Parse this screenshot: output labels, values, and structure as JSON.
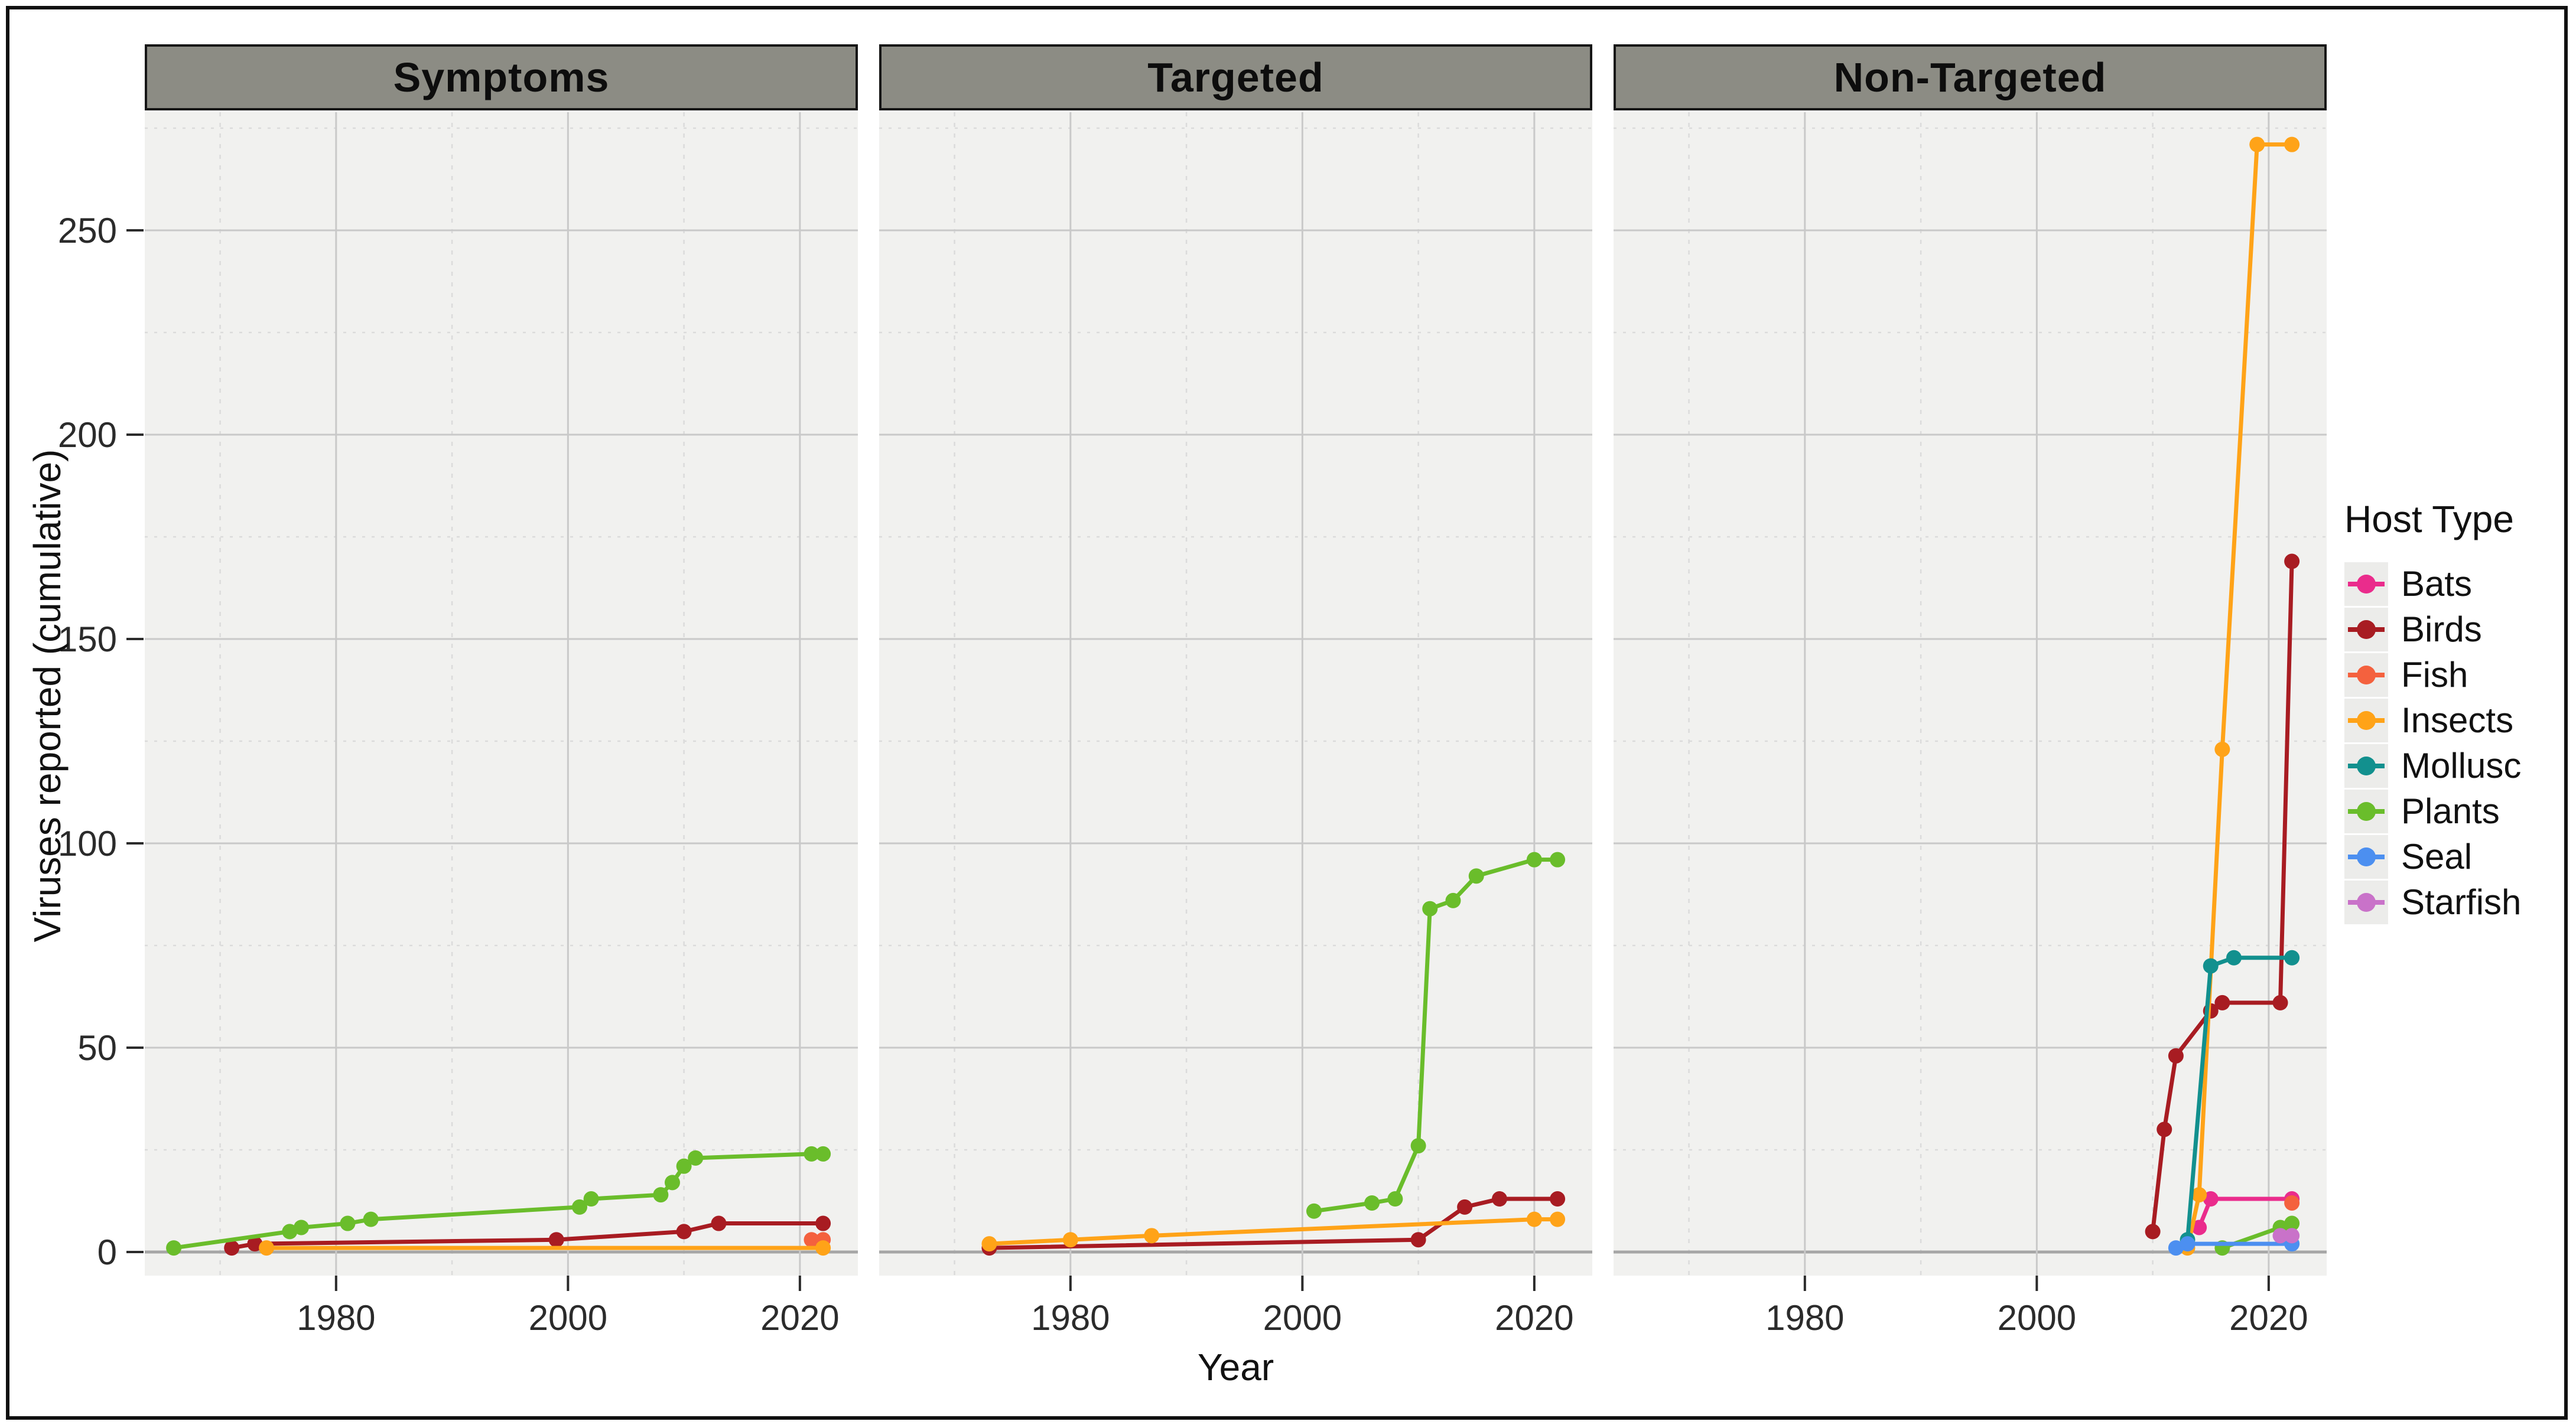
{
  "figure": {
    "colors": {
      "Bats": "#EA2C8C",
      "Birds": "#A81C22",
      "Fish": "#F4613E",
      "Insects": "#FFA318",
      "Mollusc": "#12908E",
      "Plants": "#6ABD2B",
      "Seal": "#4C8FF0",
      "Starfish": "#C972C9"
    },
    "panel_bg": "#F1F1EF",
    "grid_major": "#C9C9C9",
    "grid_minor": "#DBDBDB",
    "zero_line": "#A6A6A6",
    "strip_bg": "#8C8C84",
    "tick_color": "#2B2B2B",
    "text_color": "#111111"
  },
  "y_axis": {
    "title": "Viruses reported (cumulative)",
    "ticks": [
      0,
      50,
      100,
      150,
      200,
      250
    ],
    "minor_ticks": [
      25,
      75,
      125,
      175,
      225,
      275
    ]
  },
  "x_axis": {
    "title": "Year",
    "ticks": [
      1980,
      2000,
      2020
    ],
    "minor_ticks": [
      1970,
      1990,
      2010
    ],
    "range": [
      1963.5,
      2025
    ]
  },
  "legend": {
    "title": "Host Type",
    "items": [
      {
        "label": "Bats",
        "color": "#EA2C8C"
      },
      {
        "label": "Birds",
        "color": "#A81C22"
      },
      {
        "label": "Fish",
        "color": "#F4613E"
      },
      {
        "label": "Insects",
        "color": "#FFA318"
      },
      {
        "label": "Mollusc",
        "color": "#12908E"
      },
      {
        "label": "Plants",
        "color": "#6ABD2B"
      },
      {
        "label": "Seal",
        "color": "#4C8FF0"
      },
      {
        "label": "Starfish",
        "color": "#C972C9"
      }
    ]
  },
  "chart_data": {
    "type": "line",
    "title": "",
    "xlabel": "Year",
    "ylabel": "Viruses reported (cumulative)",
    "xlim": [
      1963.5,
      2025
    ],
    "ylim": [
      -6,
      279
    ],
    "grid": true,
    "legend_position": "right",
    "facets": true,
    "panels": [
      {
        "label": "Symptoms",
        "series": [
          {
            "name": "Birds",
            "points": [
              [
                1971,
                1
              ],
              [
                1973,
                2
              ],
              [
                1999,
                3
              ],
              [
                2010,
                5
              ],
              [
                2013,
                7
              ],
              [
                2022,
                7
              ]
            ]
          },
          {
            "name": "Fish",
            "points": [
              [
                2021,
                3
              ],
              [
                2022,
                3
              ]
            ]
          },
          {
            "name": "Insects",
            "points": [
              [
                1974,
                1
              ],
              [
                2022,
                1
              ]
            ]
          },
          {
            "name": "Plants",
            "points": [
              [
                1966,
                1
              ],
              [
                1976,
                5
              ],
              [
                1977,
                6
              ],
              [
                1981,
                7
              ],
              [
                1983,
                8
              ],
              [
                2001,
                11
              ],
              [
                2002,
                13
              ],
              [
                2008,
                14
              ],
              [
                2009,
                17
              ],
              [
                2010,
                21
              ],
              [
                2011,
                23
              ],
              [
                2021,
                24
              ],
              [
                2022,
                24
              ]
            ]
          }
        ]
      },
      {
        "label": "Targeted",
        "series": [
          {
            "name": "Birds",
            "points": [
              [
                1973,
                1
              ],
              [
                2010,
                3
              ],
              [
                2014,
                11
              ],
              [
                2017,
                13
              ],
              [
                2022,
                13
              ]
            ]
          },
          {
            "name": "Insects",
            "points": [
              [
                1973,
                2
              ],
              [
                1980,
                3
              ],
              [
                1987,
                4
              ],
              [
                2020,
                8
              ],
              [
                2022,
                8
              ]
            ]
          },
          {
            "name": "Plants",
            "points": [
              [
                2001,
                10
              ],
              [
                2006,
                12
              ],
              [
                2008,
                13
              ],
              [
                2010,
                26
              ],
              [
                2011,
                84
              ],
              [
                2013,
                86
              ],
              [
                2015,
                92
              ],
              [
                2020,
                96
              ],
              [
                2022,
                96
              ]
            ]
          }
        ]
      },
      {
        "label": "Non-Targeted",
        "series": [
          {
            "name": "Bats",
            "points": [
              [
                2014,
                6
              ],
              [
                2015,
                13
              ],
              [
                2022,
                13
              ]
            ]
          },
          {
            "name": "Birds",
            "points": [
              [
                2010,
                5
              ],
              [
                2011,
                30
              ],
              [
                2012,
                48
              ],
              [
                2015,
                59
              ],
              [
                2016,
                61
              ],
              [
                2021,
                61
              ],
              [
                2022,
                169
              ]
            ]
          },
          {
            "name": "Fish",
            "points": [
              [
                2022,
                12
              ]
            ]
          },
          {
            "name": "Insects",
            "points": [
              [
                2013,
                1
              ],
              [
                2014,
                14
              ],
              [
                2016,
                123
              ],
              [
                2019,
                271
              ],
              [
                2022,
                271
              ]
            ]
          },
          {
            "name": "Mollusc",
            "points": [
              [
                2013,
                3
              ],
              [
                2015,
                70
              ],
              [
                2017,
                72
              ],
              [
                2022,
                72
              ]
            ]
          },
          {
            "name": "Plants",
            "points": [
              [
                2016,
                1
              ],
              [
                2021,
                6
              ],
              [
                2022,
                7
              ]
            ]
          },
          {
            "name": "Seal",
            "points": [
              [
                2012,
                1
              ],
              [
                2013,
                2
              ],
              [
                2022,
                2
              ]
            ]
          },
          {
            "name": "Starfish",
            "points": [
              [
                2021,
                4
              ],
              [
                2022,
                4
              ]
            ]
          }
        ]
      }
    ]
  }
}
